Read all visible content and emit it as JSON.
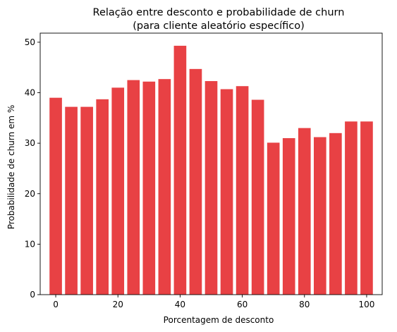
{
  "chart_data": {
    "type": "bar",
    "title_line1": "Relação entre desconto e probabilidade de churn",
    "title_line2": "(para cliente aleatório específico)",
    "xlabel": "Porcentagem de desconto",
    "ylabel": "Probabilidade de churn em %",
    "x": [
      0,
      5,
      10,
      15,
      20,
      25,
      30,
      35,
      40,
      45,
      50,
      55,
      60,
      65,
      70,
      75,
      80,
      85,
      90,
      95,
      100
    ],
    "values": [
      39.0,
      37.2,
      37.2,
      38.7,
      41.0,
      42.5,
      42.2,
      42.7,
      49.3,
      44.7,
      42.3,
      40.7,
      41.3,
      38.6,
      30.1,
      31.0,
      33.0,
      31.2,
      32.0,
      34.3,
      34.3
    ],
    "xlim": [
      -5,
      105
    ],
    "ylim": [
      0,
      51.8
    ],
    "xticks": [
      0,
      20,
      40,
      60,
      80,
      100
    ],
    "yticks": [
      0,
      10,
      20,
      30,
      40,
      50
    ],
    "bar_width": 4,
    "bar_color": "#e84144",
    "grid": false,
    "legend": "none"
  }
}
